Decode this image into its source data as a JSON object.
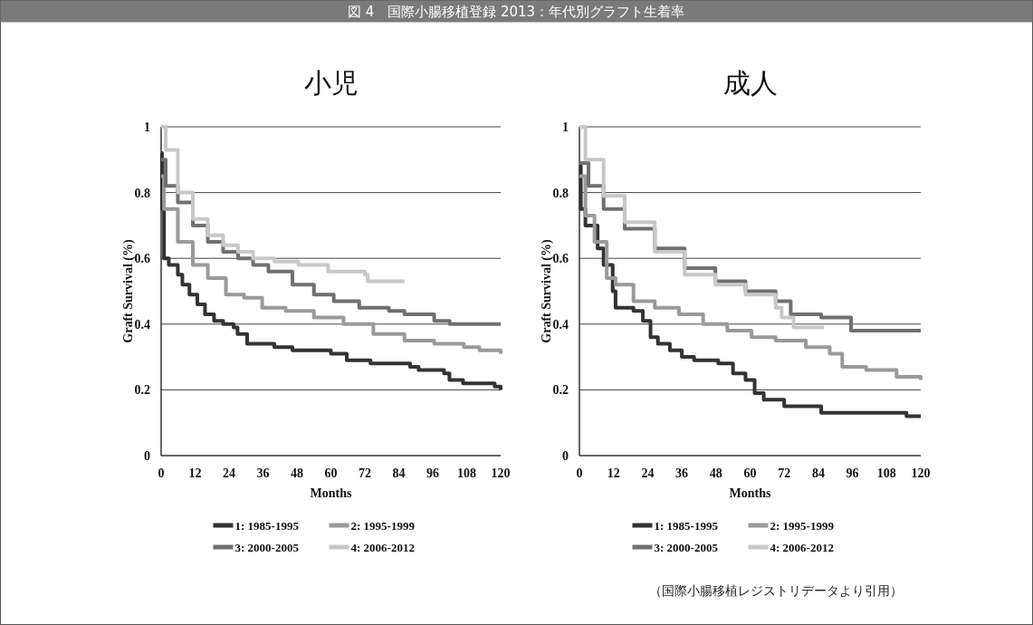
{
  "chart_data": [
    {
      "type": "step",
      "title": "小児",
      "xlabel": "Months",
      "ylabel": "Graft Survival (%)",
      "annotations": [
        "図 4　国際小腸移植登録 2013：年代別グラフト生着率"
      ],
      "xlim": [
        0,
        120
      ],
      "ylim": [
        0,
        1
      ],
      "xticks": [
        0,
        12,
        24,
        36,
        48,
        60,
        72,
        84,
        96,
        108,
        120
      ],
      "yticks": [
        0,
        0.2,
        0.4,
        0.6,
        0.8,
        1
      ],
      "grid": "y",
      "legend": "bottom",
      "series": [
        {
          "name": "1: 1985-1995",
          "color": "#333333",
          "x": [
            0,
            0.3,
            1,
            2.7,
            5.9,
            7.5,
            10,
            12.8,
            15.5,
            18.7,
            21.9,
            25.6,
            27,
            30.4,
            40,
            46.4,
            60,
            65.6,
            74,
            88,
            91,
            100,
            101.9,
            106.7,
            117.9,
            120
          ],
          "values": [
            0.92,
            0.75,
            0.6,
            0.58,
            0.55,
            0.52,
            0.49,
            0.46,
            0.43,
            0.41,
            0.4,
            0.39,
            0.37,
            0.34,
            0.33,
            0.32,
            0.31,
            0.29,
            0.28,
            0.27,
            0.26,
            0.25,
            0.23,
            0.22,
            0.21,
            0.2
          ]
        },
        {
          "name": "2: 1995-1999",
          "color": "#9a9a9a",
          "x": [
            0,
            1,
            5.9,
            11.2,
            16.5,
            22.9,
            29.3,
            35.7,
            44,
            54,
            64.5,
            75,
            86,
            96.5,
            107,
            112.5,
            120
          ],
          "values": [
            0.85,
            0.75,
            0.65,
            0.58,
            0.54,
            0.49,
            0.48,
            0.45,
            0.44,
            0.42,
            0.4,
            0.37,
            0.35,
            0.34,
            0.33,
            0.32,
            0.31
          ]
        },
        {
          "name": "3: 2000-2005",
          "color": "#707070",
          "x": [
            0,
            1.6,
            5.9,
            11.2,
            16.5,
            21.9,
            27.2,
            32.5,
            37.9,
            46.4,
            54,
            61,
            70,
            80.5,
            86,
            96.5,
            102,
            120
          ],
          "values": [
            0.9,
            0.82,
            0.77,
            0.7,
            0.65,
            0.62,
            0.6,
            0.58,
            0.56,
            0.52,
            0.49,
            0.47,
            0.45,
            0.44,
            0.43,
            0.41,
            0.4,
            0.4
          ]
        },
        {
          "name": "4: 2006-2012",
          "color": "#c8c8c8",
          "x": [
            0,
            1.6,
            5.9,
            11.2,
            16.5,
            21.9,
            27.2,
            32.5,
            40,
            48.5,
            59,
            72,
            73,
            86
          ],
          "values": [
            1,
            0.93,
            0.8,
            0.72,
            0.67,
            0.64,
            0.62,
            0.6,
            0.59,
            0.58,
            0.56,
            0.55,
            0.53,
            0.53
          ]
        }
      ]
    },
    {
      "type": "step",
      "title": "成人",
      "xlabel": "Months",
      "ylabel": "Graft Survival (%)",
      "annotations": [
        "（国際小腸移植レジストリデータより引用）"
      ],
      "xlim": [
        0,
        120
      ],
      "ylim": [
        0,
        1
      ],
      "xticks": [
        0,
        12,
        24,
        36,
        48,
        60,
        72,
        84,
        96,
        108,
        120
      ],
      "yticks": [
        0,
        0.2,
        0.4,
        0.6,
        0.8,
        1
      ],
      "grid": "y",
      "legend": "bottom",
      "series": [
        {
          "name": "1: 1985-1995",
          "color": "#333333",
          "x": [
            0,
            0.5,
            2.1,
            6.4,
            8.5,
            11.7,
            12.7,
            19,
            22.3,
            25,
            27.6,
            31.8,
            36,
            40.3,
            48.8,
            54,
            58.4,
            61.6,
            64.8,
            72,
            85,
            115,
            120
          ],
          "values": [
            0.88,
            0.75,
            0.7,
            0.63,
            0.58,
            0.5,
            0.45,
            0.44,
            0.41,
            0.36,
            0.34,
            0.32,
            0.3,
            0.29,
            0.28,
            0.25,
            0.23,
            0.19,
            0.17,
            0.15,
            0.13,
            0.12,
            0.12
          ]
        },
        {
          "name": "2: 1995-1999",
          "color": "#9a9a9a",
          "x": [
            0,
            2.1,
            5.3,
            9.6,
            12.7,
            19,
            26.5,
            35,
            43.5,
            52,
            60.5,
            69,
            79.6,
            88,
            92.4,
            100.8,
            111.5,
            120
          ],
          "values": [
            0.85,
            0.73,
            0.65,
            0.54,
            0.52,
            0.47,
            0.45,
            0.43,
            0.4,
            0.38,
            0.36,
            0.35,
            0.33,
            0.31,
            0.27,
            0.26,
            0.24,
            0.23
          ]
        },
        {
          "name": "3: 2000-2005",
          "color": "#707070",
          "x": [
            0,
            3.2,
            8.5,
            15.9,
            26.5,
            37,
            47.8,
            58.4,
            69,
            74.3,
            85,
            95.5,
            106,
            120
          ],
          "values": [
            0.89,
            0.82,
            0.75,
            0.69,
            0.63,
            0.57,
            0.53,
            0.5,
            0.47,
            0.43,
            0.42,
            0.38,
            0.38,
            0.38
          ]
        },
        {
          "name": "4: 2006-2012",
          "color": "#c8c8c8",
          "x": [
            0,
            2.1,
            8.5,
            15.9,
            26.5,
            37,
            47.8,
            58.4,
            69,
            71.1,
            75.3,
            86
          ],
          "values": [
            1,
            0.9,
            0.79,
            0.71,
            0.62,
            0.55,
            0.52,
            0.49,
            0.45,
            0.42,
            0.39,
            0.39
          ]
        }
      ]
    }
  ]
}
